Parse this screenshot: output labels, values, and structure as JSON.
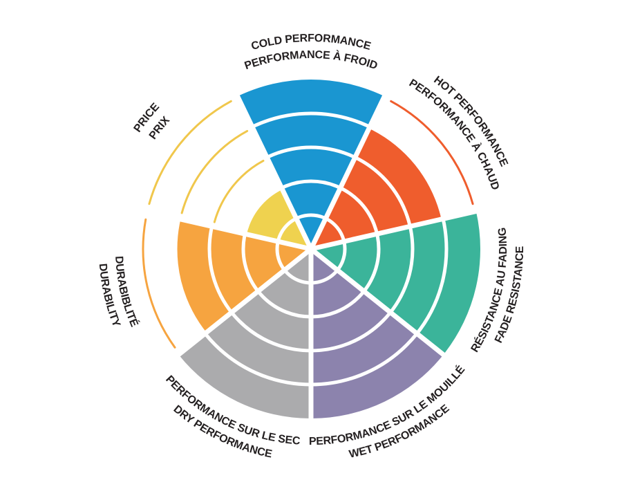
{
  "chart_data": {
    "type": "pie",
    "variant": "polar-rating-wheel",
    "title": "",
    "scale": {
      "min": 0,
      "max": 5,
      "levels": 5
    },
    "legend": "none",
    "grid": "white ring separators and radial spokes over filled sectors; unfilled levels shown as thin colored outline arcs",
    "label_color": "#231F20",
    "background": "#FFFFFF",
    "sectors": [
      {
        "id": "cold-performance",
        "lines": [
          "COLD PERFORMANCE",
          "PERFORMANCE À FROID"
        ],
        "value": 5,
        "color": "#1A96D1"
      },
      {
        "id": "hot-performance",
        "lines": [
          "HOT PERFORMANCE",
          "PERFORMANCE À CHAUD"
        ],
        "value": 4,
        "color": "#EF5D2D"
      },
      {
        "id": "fade-resistance",
        "lines": [
          "RÉSISTANCE AU FADING",
          "FADE RESISTANCE"
        ],
        "value": 5,
        "color": "#3BB49A"
      },
      {
        "id": "wet-performance",
        "lines": [
          "PERFORMANCE SUR LE MOUILLÉ",
          "WET PERFORMANCE"
        ],
        "value": 5,
        "color": "#8C83AD"
      },
      {
        "id": "dry-performance",
        "lines": [
          "PERFORMANCE SUR LE SEC",
          "DRY PERFORMANCE"
        ],
        "value": 5,
        "color": "#ABABAD"
      },
      {
        "id": "durability",
        "lines": [
          "DURABIBLITÉ",
          "DURABILITY"
        ],
        "value": 4,
        "color": "#F6A440"
      },
      {
        "id": "price",
        "lines": [
          "PRICE",
          "PRIX"
        ],
        "value": 2,
        "color": "#EFD24F",
        "arc_color": "#F0C74C"
      }
    ]
  }
}
